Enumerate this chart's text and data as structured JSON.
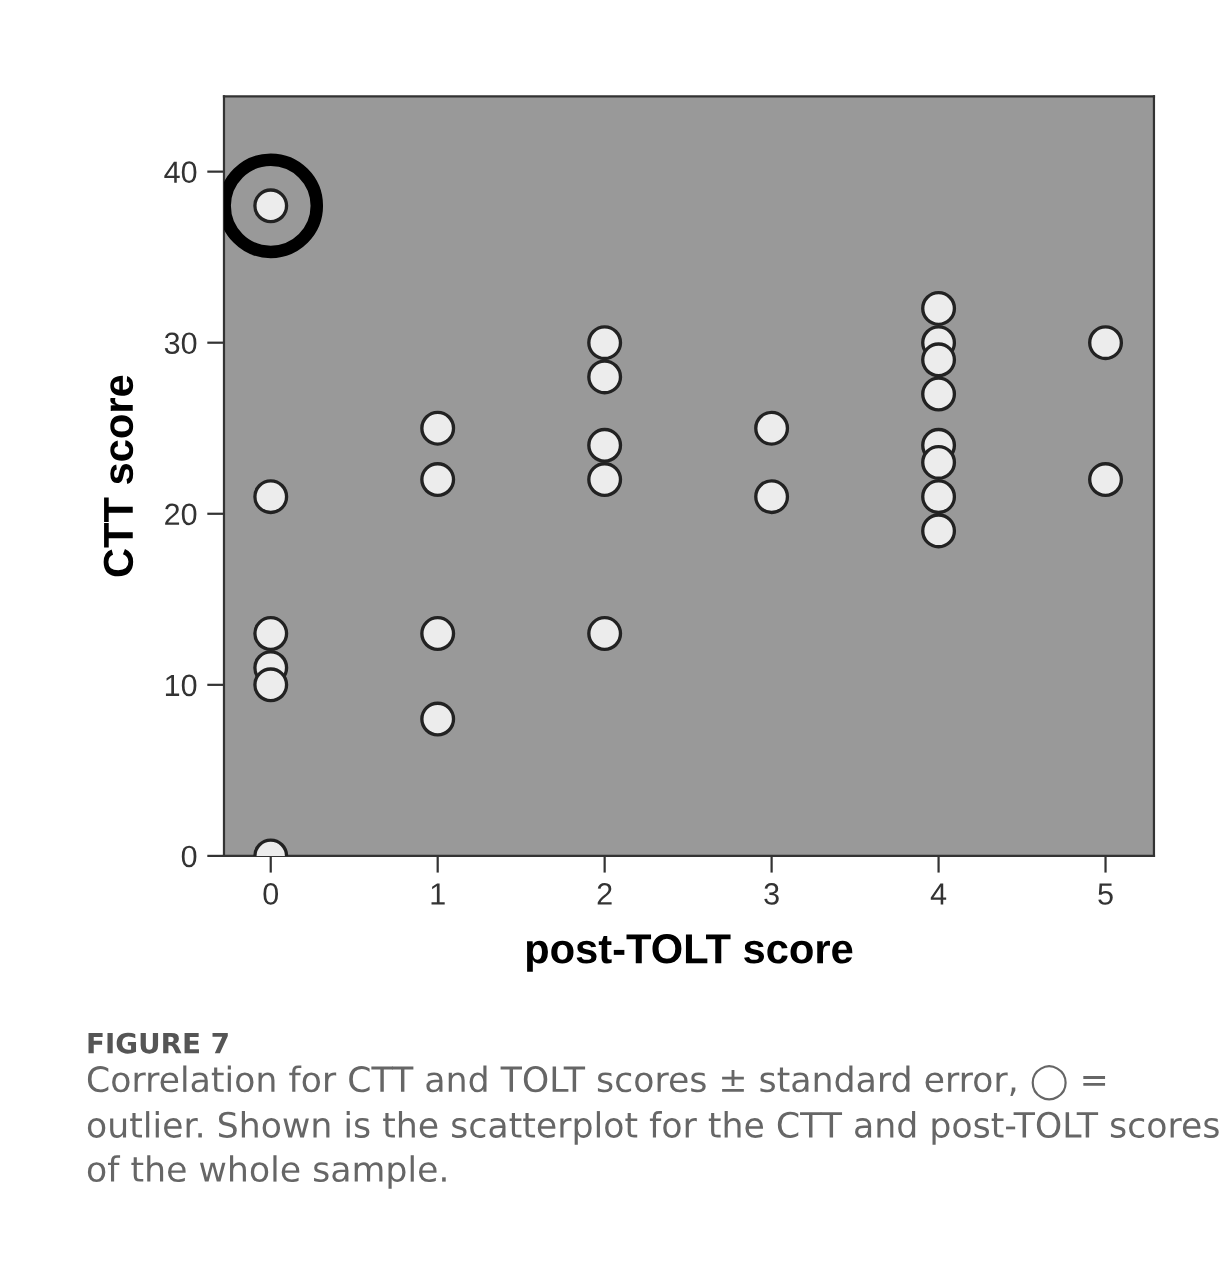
{
  "chart_data": {
    "type": "scatter",
    "xlabel": "post-TOLT score",
    "ylabel": "CTT score",
    "xlim": [
      -0.28,
      5.29
    ],
    "ylim": [
      0,
      44.4
    ],
    "xticks": [
      0,
      1,
      2,
      3,
      4,
      5
    ],
    "yticks": [
      0,
      10,
      20,
      30,
      40
    ],
    "grid": false,
    "marker": "circle",
    "series": [
      {
        "color": "#ececec",
        "x": [
          0,
          0,
          0,
          0,
          0,
          0,
          1,
          1,
          1,
          1,
          2,
          2,
          2,
          2,
          2,
          3,
          3,
          4,
          4,
          4,
          4,
          4,
          4,
          4,
          4,
          5,
          5
        ],
        "values": [
          38,
          21,
          13,
          11,
          10,
          0,
          25,
          22,
          13,
          8,
          30,
          28,
          24,
          22,
          13,
          25,
          21,
          32,
          30,
          29,
          27,
          24,
          23,
          21,
          19,
          30,
          22
        ]
      },
      {
        "color": "#000000",
        "x": [
          0
        ],
        "values": [
          38
        ]
      }
    ],
    "annotations": [
      "FIGURE 7",
      "Correlation for CTT and TOLT scores ± standard error, ◯ = outlier. Shown is the scatterplot for the CTT and post-TOLT scores of the whole sample."
    ]
  }
}
